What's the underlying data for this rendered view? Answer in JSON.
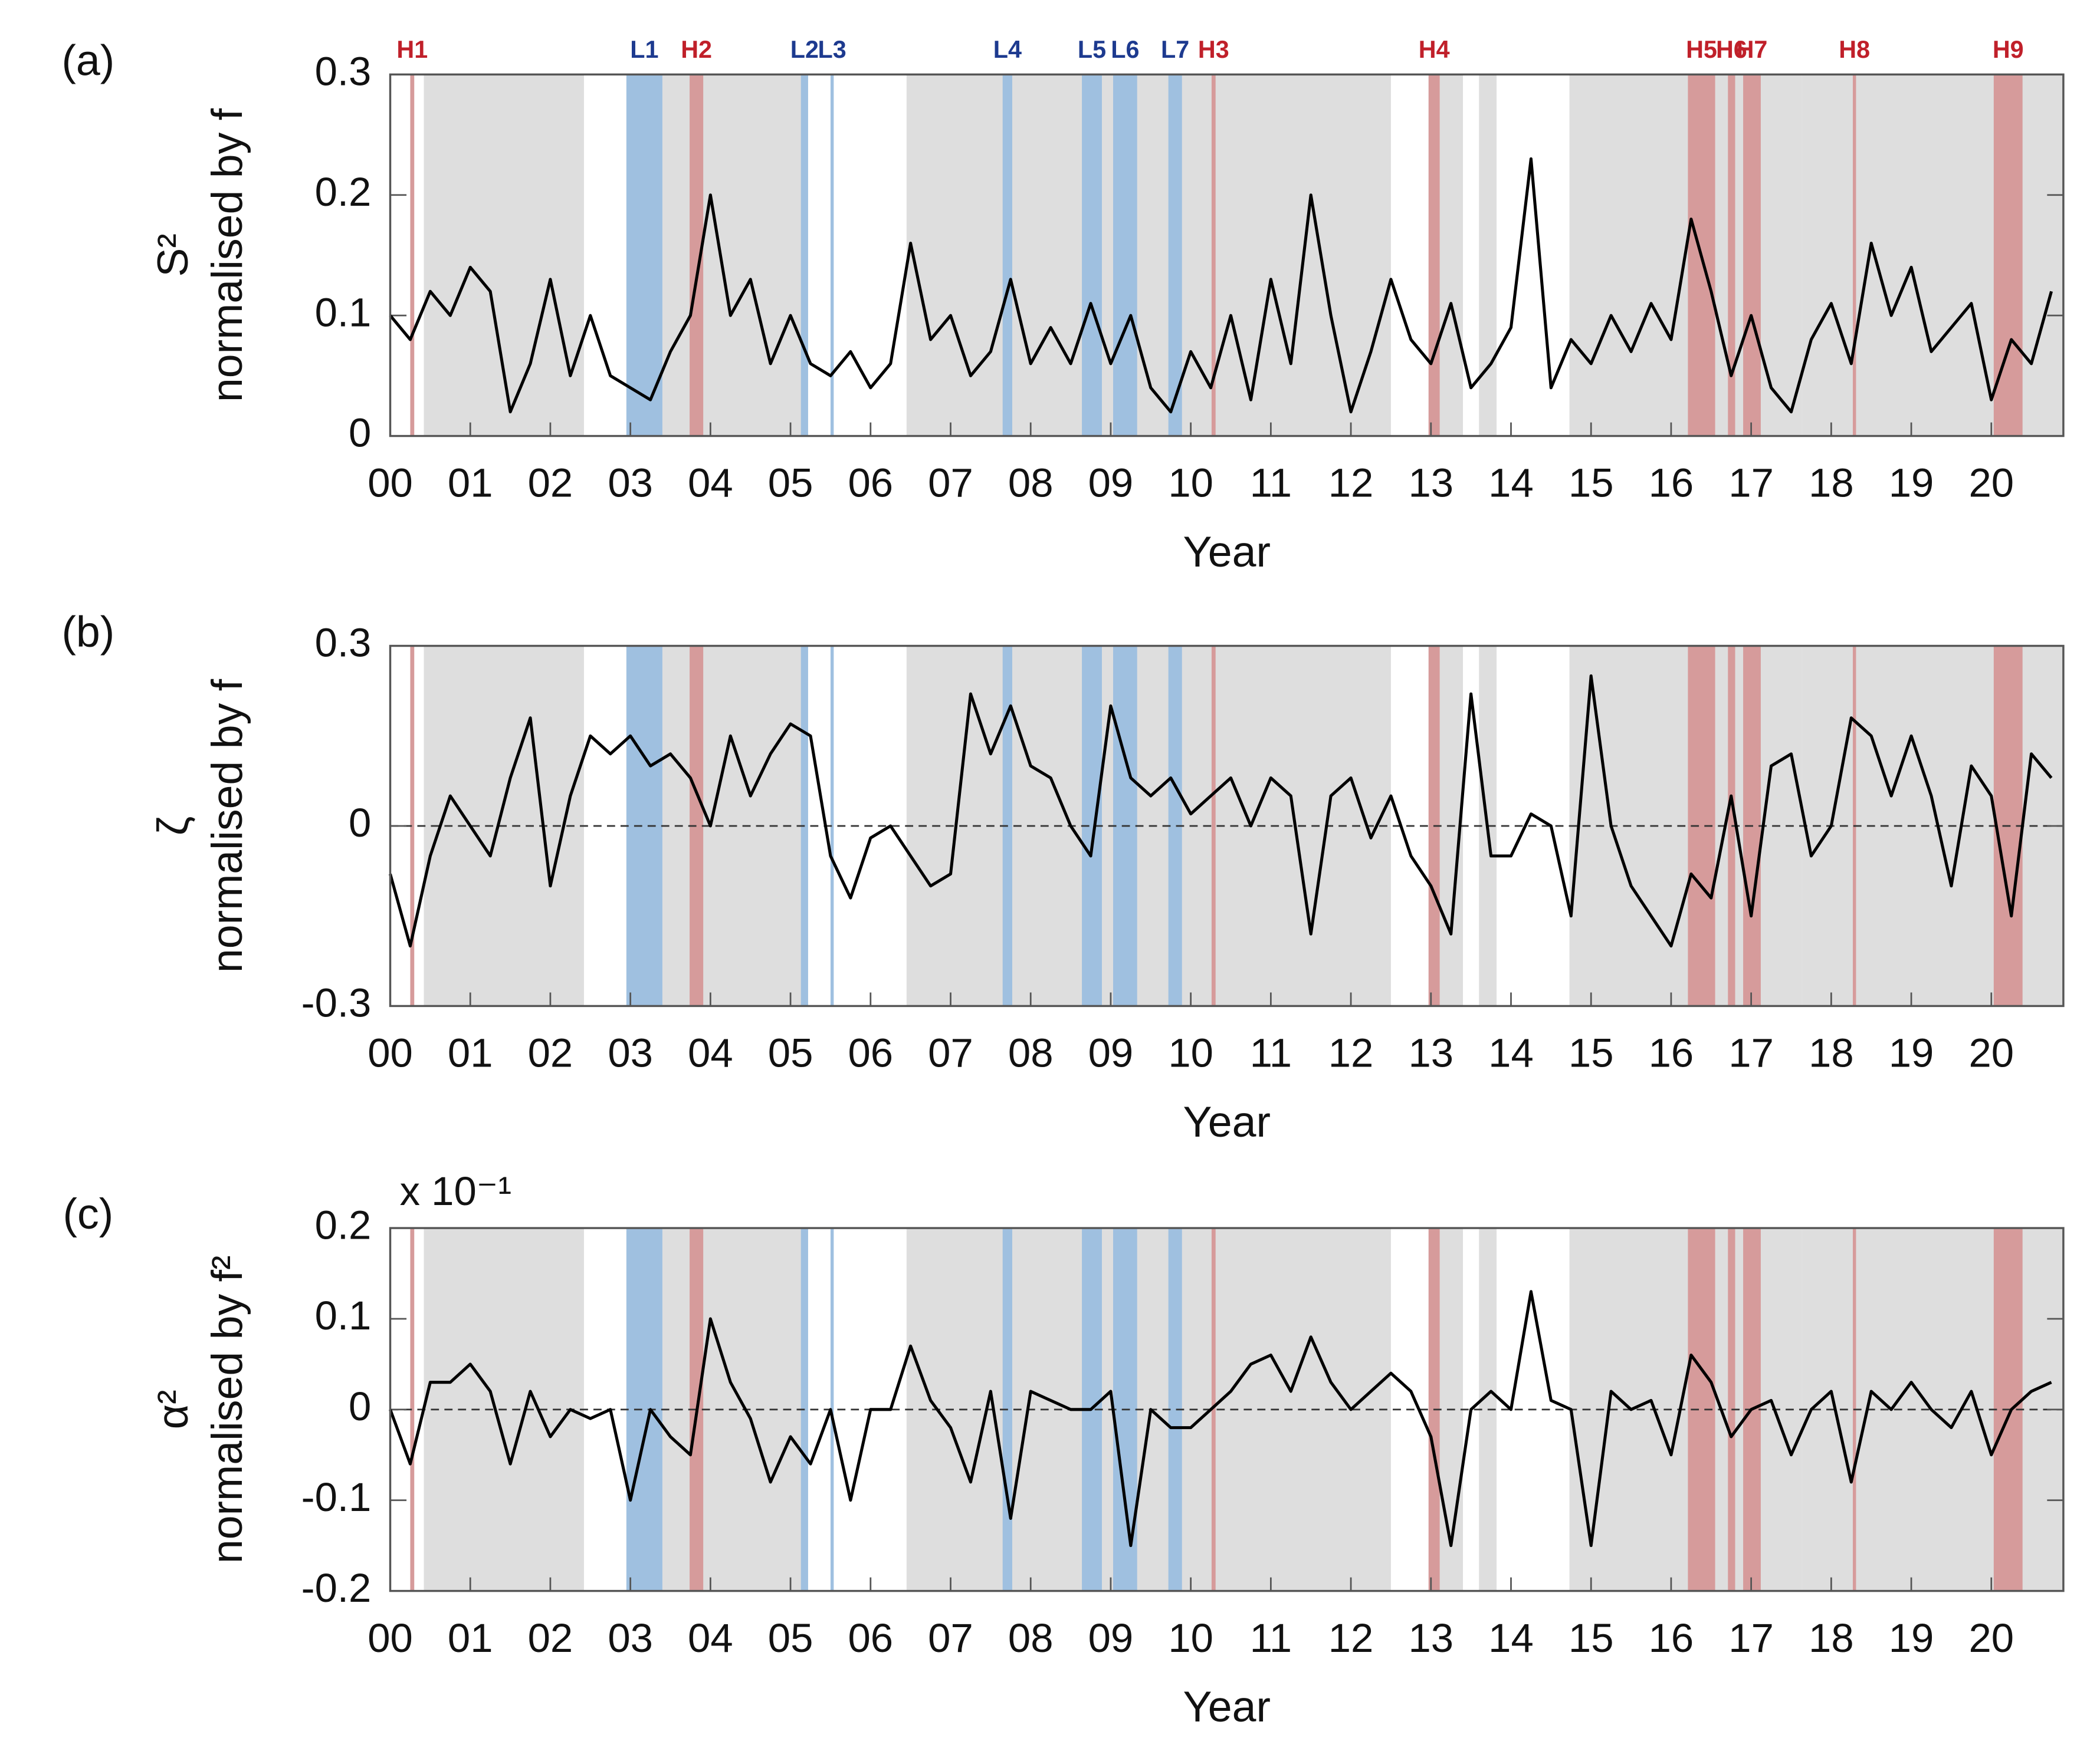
{
  "chart_data": [
    {
      "type": "line",
      "panel": "(a)",
      "ylabel": [
        "S²",
        "normalised by f"
      ],
      "xlabel": "Year",
      "zero_line": false,
      "bands": [
        {
          "label": "H1",
          "kind": "H",
          "x0": 0.25,
          "x1": 0.3
        },
        {
          "label": "L1",
          "kind": "L",
          "x0": 2.95,
          "x1": 3.4
        },
        {
          "label": "H2",
          "kind": "H",
          "x0": 3.74,
          "x1": 3.91
        },
        {
          "label": "L2",
          "kind": "L",
          "x0": 5.13,
          "x1": 5.22
        },
        {
          "label": "L3",
          "kind": "L",
          "x0": 5.5,
          "x1": 5.54
        },
        {
          "label": "L4",
          "kind": "L",
          "x0": 7.65,
          "x1": 7.77
        },
        {
          "label": "L5",
          "kind": "L",
          "x0": 8.64,
          "x1": 8.89
        },
        {
          "label": "L6",
          "kind": "L",
          "x0": 9.03,
          "x1": 9.33
        },
        {
          "label": "L7",
          "kind": "L",
          "x0": 9.72,
          "x1": 9.89
        },
        {
          "label": "H3",
          "kind": "H",
          "x0": 10.26,
          "x1": 10.31
        },
        {
          "label": "H4",
          "kind": "H",
          "x0": 12.97,
          "x1": 13.11
        },
        {
          "label": "H5",
          "kind": "H",
          "x0": 16.21,
          "x1": 16.55
        },
        {
          "label": "H6",
          "kind": "H",
          "x0": 16.71,
          "x1": 16.8
        },
        {
          "label": "H7",
          "kind": "H",
          "x0": 16.9,
          "x1": 17.12
        },
        {
          "label": "H8",
          "kind": "H",
          "x0": 18.27,
          "x1": 18.31
        },
        {
          "label": "H9",
          "kind": "H",
          "x0": 20.03,
          "x1": 20.39
        }
      ],
      "gray_periods": [
        [
          0.42,
          2.42
        ],
        [
          3.4,
          5.17
        ],
        [
          6.45,
          12.5
        ],
        [
          13.11,
          13.4
        ],
        [
          13.6,
          13.82
        ],
        [
          14.73,
          17.63
        ],
        [
          17.63,
          20.9
        ]
      ],
      "colors": {
        "gray": "#dedede",
        "H": "#d69b9b",
        "L": "#9fc0e0",
        "H_text": "#c0202a",
        "L_text": "#1d3a8f",
        "line": "#000000"
      },
      "xlim": [
        0,
        20.9
      ],
      "ylim": [
        0,
        0.3
      ],
      "yticks": [
        0,
        0.1,
        0.2,
        0.3
      ],
      "xticks": [
        {
          "value": 0,
          "label": "00"
        },
        {
          "value": 1,
          "label": "01"
        },
        {
          "value": 2,
          "label": "02"
        },
        {
          "value": 3,
          "label": "03"
        },
        {
          "value": 4,
          "label": "04"
        },
        {
          "value": 5,
          "label": "05"
        },
        {
          "value": 6,
          "label": "06"
        },
        {
          "value": 7,
          "label": "07"
        },
        {
          "value": 8,
          "label": "08"
        },
        {
          "value": 9,
          "label": "09"
        },
        {
          "value": 10,
          "label": "10"
        },
        {
          "value": 11,
          "label": "11"
        },
        {
          "value": 12,
          "label": "12"
        },
        {
          "value": 13,
          "label": "13"
        },
        {
          "value": 14,
          "label": "14"
        },
        {
          "value": 15,
          "label": "15"
        },
        {
          "value": 16,
          "label": "16"
        },
        {
          "value": 17,
          "label": "17"
        },
        {
          "value": 18,
          "label": "18"
        },
        {
          "value": 19,
          "label": "19"
        },
        {
          "value": 20,
          "label": "20"
        }
      ],
      "x": [
        0,
        0.25,
        0.5,
        0.75,
        1,
        1.25,
        1.5,
        1.75,
        2,
        2.25,
        2.5,
        2.75,
        3,
        3.25,
        3.5,
        3.75,
        4,
        4.25,
        4.5,
        4.75,
        5,
        5.25,
        5.5,
        5.75,
        6,
        6.25,
        6.5,
        6.75,
        7,
        7.25,
        7.5,
        7.75,
        8,
        8.25,
        8.5,
        8.75,
        9,
        9.25,
        9.5,
        9.75,
        10,
        10.25,
        10.5,
        10.75,
        11,
        11.25,
        11.5,
        11.75,
        12,
        12.25,
        12.5,
        12.75,
        13,
        13.25,
        13.5,
        13.75,
        14,
        14.25,
        14.5,
        14.75,
        15,
        15.25,
        15.5,
        15.75,
        16,
        16.25,
        16.5,
        16.75,
        17,
        17.25,
        17.5,
        17.75,
        18,
        18.25,
        18.5,
        18.75,
        19,
        19.25,
        19.5,
        19.75,
        20,
        20.25,
        20.5,
        20.75
      ],
      "values": [
        0.1,
        0.08,
        0.12,
        0.1,
        0.14,
        0.12,
        0.02,
        0.06,
        0.13,
        0.05,
        0.1,
        0.05,
        0.04,
        0.03,
        0.07,
        0.1,
        0.2,
        0.1,
        0.13,
        0.06,
        0.1,
        0.06,
        0.05,
        0.07,
        0.04,
        0.06,
        0.16,
        0.08,
        0.1,
        0.05,
        0.07,
        0.13,
        0.06,
        0.09,
        0.06,
        0.11,
        0.06,
        0.1,
        0.04,
        0.02,
        0.07,
        0.04,
        0.1,
        0.03,
        0.13,
        0.06,
        0.2,
        0.1,
        0.02,
        0.07,
        0.13,
        0.08,
        0.06,
        0.11,
        0.04,
        0.06,
        0.09,
        0.23,
        0.04,
        0.08,
        0.06,
        0.1,
        0.07,
        0.11,
        0.08,
        0.18,
        0.12,
        0.05,
        0.1,
        0.04,
        0.02,
        0.08,
        0.11,
        0.06,
        0.16,
        0.1,
        0.14,
        0.07,
        0.09,
        0.11,
        0.03,
        0.08,
        0.06,
        0.12
      ]
    },
    {
      "type": "line",
      "panel": "(b)",
      "ylabel": [
        "ζ",
        "normalised by f"
      ],
      "xlabel": "Year",
      "zero_line": true,
      "xlim": [
        0,
        20.9
      ],
      "ylim": [
        -0.3,
        0.3
      ],
      "yticks": [
        -0.3,
        0,
        0.3
      ],
      "xticks": [
        {
          "value": 0,
          "label": "00"
        },
        {
          "value": 1,
          "label": "01"
        },
        {
          "value": 2,
          "label": "02"
        },
        {
          "value": 3,
          "label": "03"
        },
        {
          "value": 4,
          "label": "04"
        },
        {
          "value": 5,
          "label": "05"
        },
        {
          "value": 6,
          "label": "06"
        },
        {
          "value": 7,
          "label": "07"
        },
        {
          "value": 8,
          "label": "08"
        },
        {
          "value": 9,
          "label": "09"
        },
        {
          "value": 10,
          "label": "10"
        },
        {
          "value": 11,
          "label": "11"
        },
        {
          "value": 12,
          "label": "12"
        },
        {
          "value": 13,
          "label": "13"
        },
        {
          "value": 14,
          "label": "14"
        },
        {
          "value": 15,
          "label": "15"
        },
        {
          "value": 16,
          "label": "16"
        },
        {
          "value": 17,
          "label": "17"
        },
        {
          "value": 18,
          "label": "18"
        },
        {
          "value": 19,
          "label": "19"
        },
        {
          "value": 20,
          "label": "20"
        }
      ],
      "x": [
        0,
        0.25,
        0.5,
        0.75,
        1,
        1.25,
        1.5,
        1.75,
        2,
        2.25,
        2.5,
        2.75,
        3,
        3.25,
        3.5,
        3.75,
        4,
        4.25,
        4.5,
        4.75,
        5,
        5.25,
        5.5,
        5.75,
        6,
        6.25,
        6.5,
        6.75,
        7,
        7.25,
        7.5,
        7.75,
        8,
        8.25,
        8.5,
        8.75,
        9,
        9.25,
        9.5,
        9.75,
        10,
        10.25,
        10.5,
        10.75,
        11,
        11.25,
        11.5,
        11.75,
        12,
        12.25,
        12.5,
        12.75,
        13,
        13.25,
        13.5,
        13.75,
        14,
        14.25,
        14.5,
        14.75,
        15,
        15.25,
        15.5,
        15.75,
        16,
        16.25,
        16.5,
        16.75,
        17,
        17.25,
        17.5,
        17.75,
        18,
        18.25,
        18.5,
        18.75,
        19,
        19.25,
        19.5,
        19.75,
        20,
        20.25,
        20.5,
        20.75
      ],
      "values": [
        -0.08,
        -0.2,
        -0.05,
        0.05,
        0.0,
        -0.05,
        0.08,
        0.18,
        -0.1,
        0.05,
        0.15,
        0.12,
        0.15,
        0.1,
        0.12,
        0.08,
        0.0,
        0.15,
        0.05,
        0.12,
        0.17,
        0.15,
        -0.05,
        -0.12,
        -0.02,
        0.0,
        -0.05,
        -0.1,
        -0.08,
        0.22,
        0.12,
        0.2,
        0.1,
        0.08,
        0.0,
        -0.05,
        0.2,
        0.08,
        0.05,
        0.08,
        0.02,
        0.05,
        0.08,
        0.0,
        0.08,
        0.05,
        -0.18,
        0.05,
        0.08,
        -0.02,
        0.05,
        -0.05,
        -0.1,
        -0.18,
        0.22,
        -0.05,
        -0.05,
        0.02,
        0.0,
        -0.15,
        0.25,
        0.0,
        -0.1,
        -0.15,
        -0.2,
        -0.08,
        -0.12,
        0.05,
        -0.15,
        0.1,
        0.12,
        -0.05,
        0.0,
        0.18,
        0.15,
        0.05,
        0.15,
        0.05,
        -0.1,
        0.1,
        0.05,
        -0.15,
        0.12,
        0.08
      ]
    },
    {
      "type": "line",
      "panel": "(c)",
      "ylabel": [
        "α²",
        "normalised by f²"
      ],
      "xlabel": "Year",
      "zero_line": true,
      "scale_note": "x 10⁻¹",
      "xlim": [
        0,
        20.9
      ],
      "ylim": [
        -0.2,
        0.2
      ],
      "yticks": [
        -0.2,
        -0.1,
        0,
        0.1,
        0.2
      ],
      "xticks": [
        {
          "value": 0,
          "label": "00"
        },
        {
          "value": 1,
          "label": "01"
        },
        {
          "value": 2,
          "label": "02"
        },
        {
          "value": 3,
          "label": "03"
        },
        {
          "value": 4,
          "label": "04"
        },
        {
          "value": 5,
          "label": "05"
        },
        {
          "value": 6,
          "label": "06"
        },
        {
          "value": 7,
          "label": "07"
        },
        {
          "value": 8,
          "label": "08"
        },
        {
          "value": 9,
          "label": "09"
        },
        {
          "value": 10,
          "label": "10"
        },
        {
          "value": 11,
          "label": "11"
        },
        {
          "value": 12,
          "label": "12"
        },
        {
          "value": 13,
          "label": "13"
        },
        {
          "value": 14,
          "label": "14"
        },
        {
          "value": 15,
          "label": "15"
        },
        {
          "value": 16,
          "label": "16"
        },
        {
          "value": 17,
          "label": "17"
        },
        {
          "value": 18,
          "label": "18"
        },
        {
          "value": 19,
          "label": "19"
        },
        {
          "value": 20,
          "label": "20"
        }
      ],
      "x": [
        0,
        0.25,
        0.5,
        0.75,
        1,
        1.25,
        1.5,
        1.75,
        2,
        2.25,
        2.5,
        2.75,
        3,
        3.25,
        3.5,
        3.75,
        4,
        4.25,
        4.5,
        4.75,
        5,
        5.25,
        5.5,
        5.75,
        6,
        6.25,
        6.5,
        6.75,
        7,
        7.25,
        7.5,
        7.75,
        8,
        8.25,
        8.5,
        8.75,
        9,
        9.25,
        9.5,
        9.75,
        10,
        10.25,
        10.5,
        10.75,
        11,
        11.25,
        11.5,
        11.75,
        12,
        12.25,
        12.5,
        12.75,
        13,
        13.25,
        13.5,
        13.75,
        14,
        14.25,
        14.5,
        14.75,
        15,
        15.25,
        15.5,
        15.75,
        16,
        16.25,
        16.5,
        16.75,
        17,
        17.25,
        17.5,
        17.75,
        18,
        18.25,
        18.5,
        18.75,
        19,
        19.25,
        19.5,
        19.75,
        20,
        20.25,
        20.5,
        20.75
      ],
      "values": [
        0.0,
        -0.06,
        0.03,
        0.03,
        0.05,
        0.02,
        -0.06,
        0.02,
        -0.03,
        0.0,
        -0.01,
        0.0,
        -0.1,
        0.0,
        -0.03,
        -0.05,
        0.1,
        0.03,
        -0.01,
        -0.08,
        -0.03,
        -0.06,
        0.0,
        -0.1,
        0.0,
        0.0,
        0.07,
        0.01,
        -0.02,
        -0.08,
        0.02,
        -0.12,
        0.02,
        0.01,
        0.0,
        0.0,
        0.02,
        -0.15,
        0.0,
        -0.02,
        -0.02,
        0.0,
        0.02,
        0.05,
        0.06,
        0.02,
        0.08,
        0.03,
        0.0,
        0.02,
        0.04,
        0.02,
        -0.03,
        -0.15,
        0.0,
        0.02,
        0.0,
        0.13,
        0.01,
        0.0,
        -0.15,
        0.02,
        0.0,
        0.01,
        -0.05,
        0.06,
        0.03,
        -0.03,
        0.0,
        0.01,
        -0.05,
        0.0,
        0.02,
        -0.08,
        0.02,
        0.0,
        0.03,
        0.0,
        -0.02,
        0.02,
        -0.05,
        0.0,
        0.02,
        0.03
      ]
    }
  ]
}
